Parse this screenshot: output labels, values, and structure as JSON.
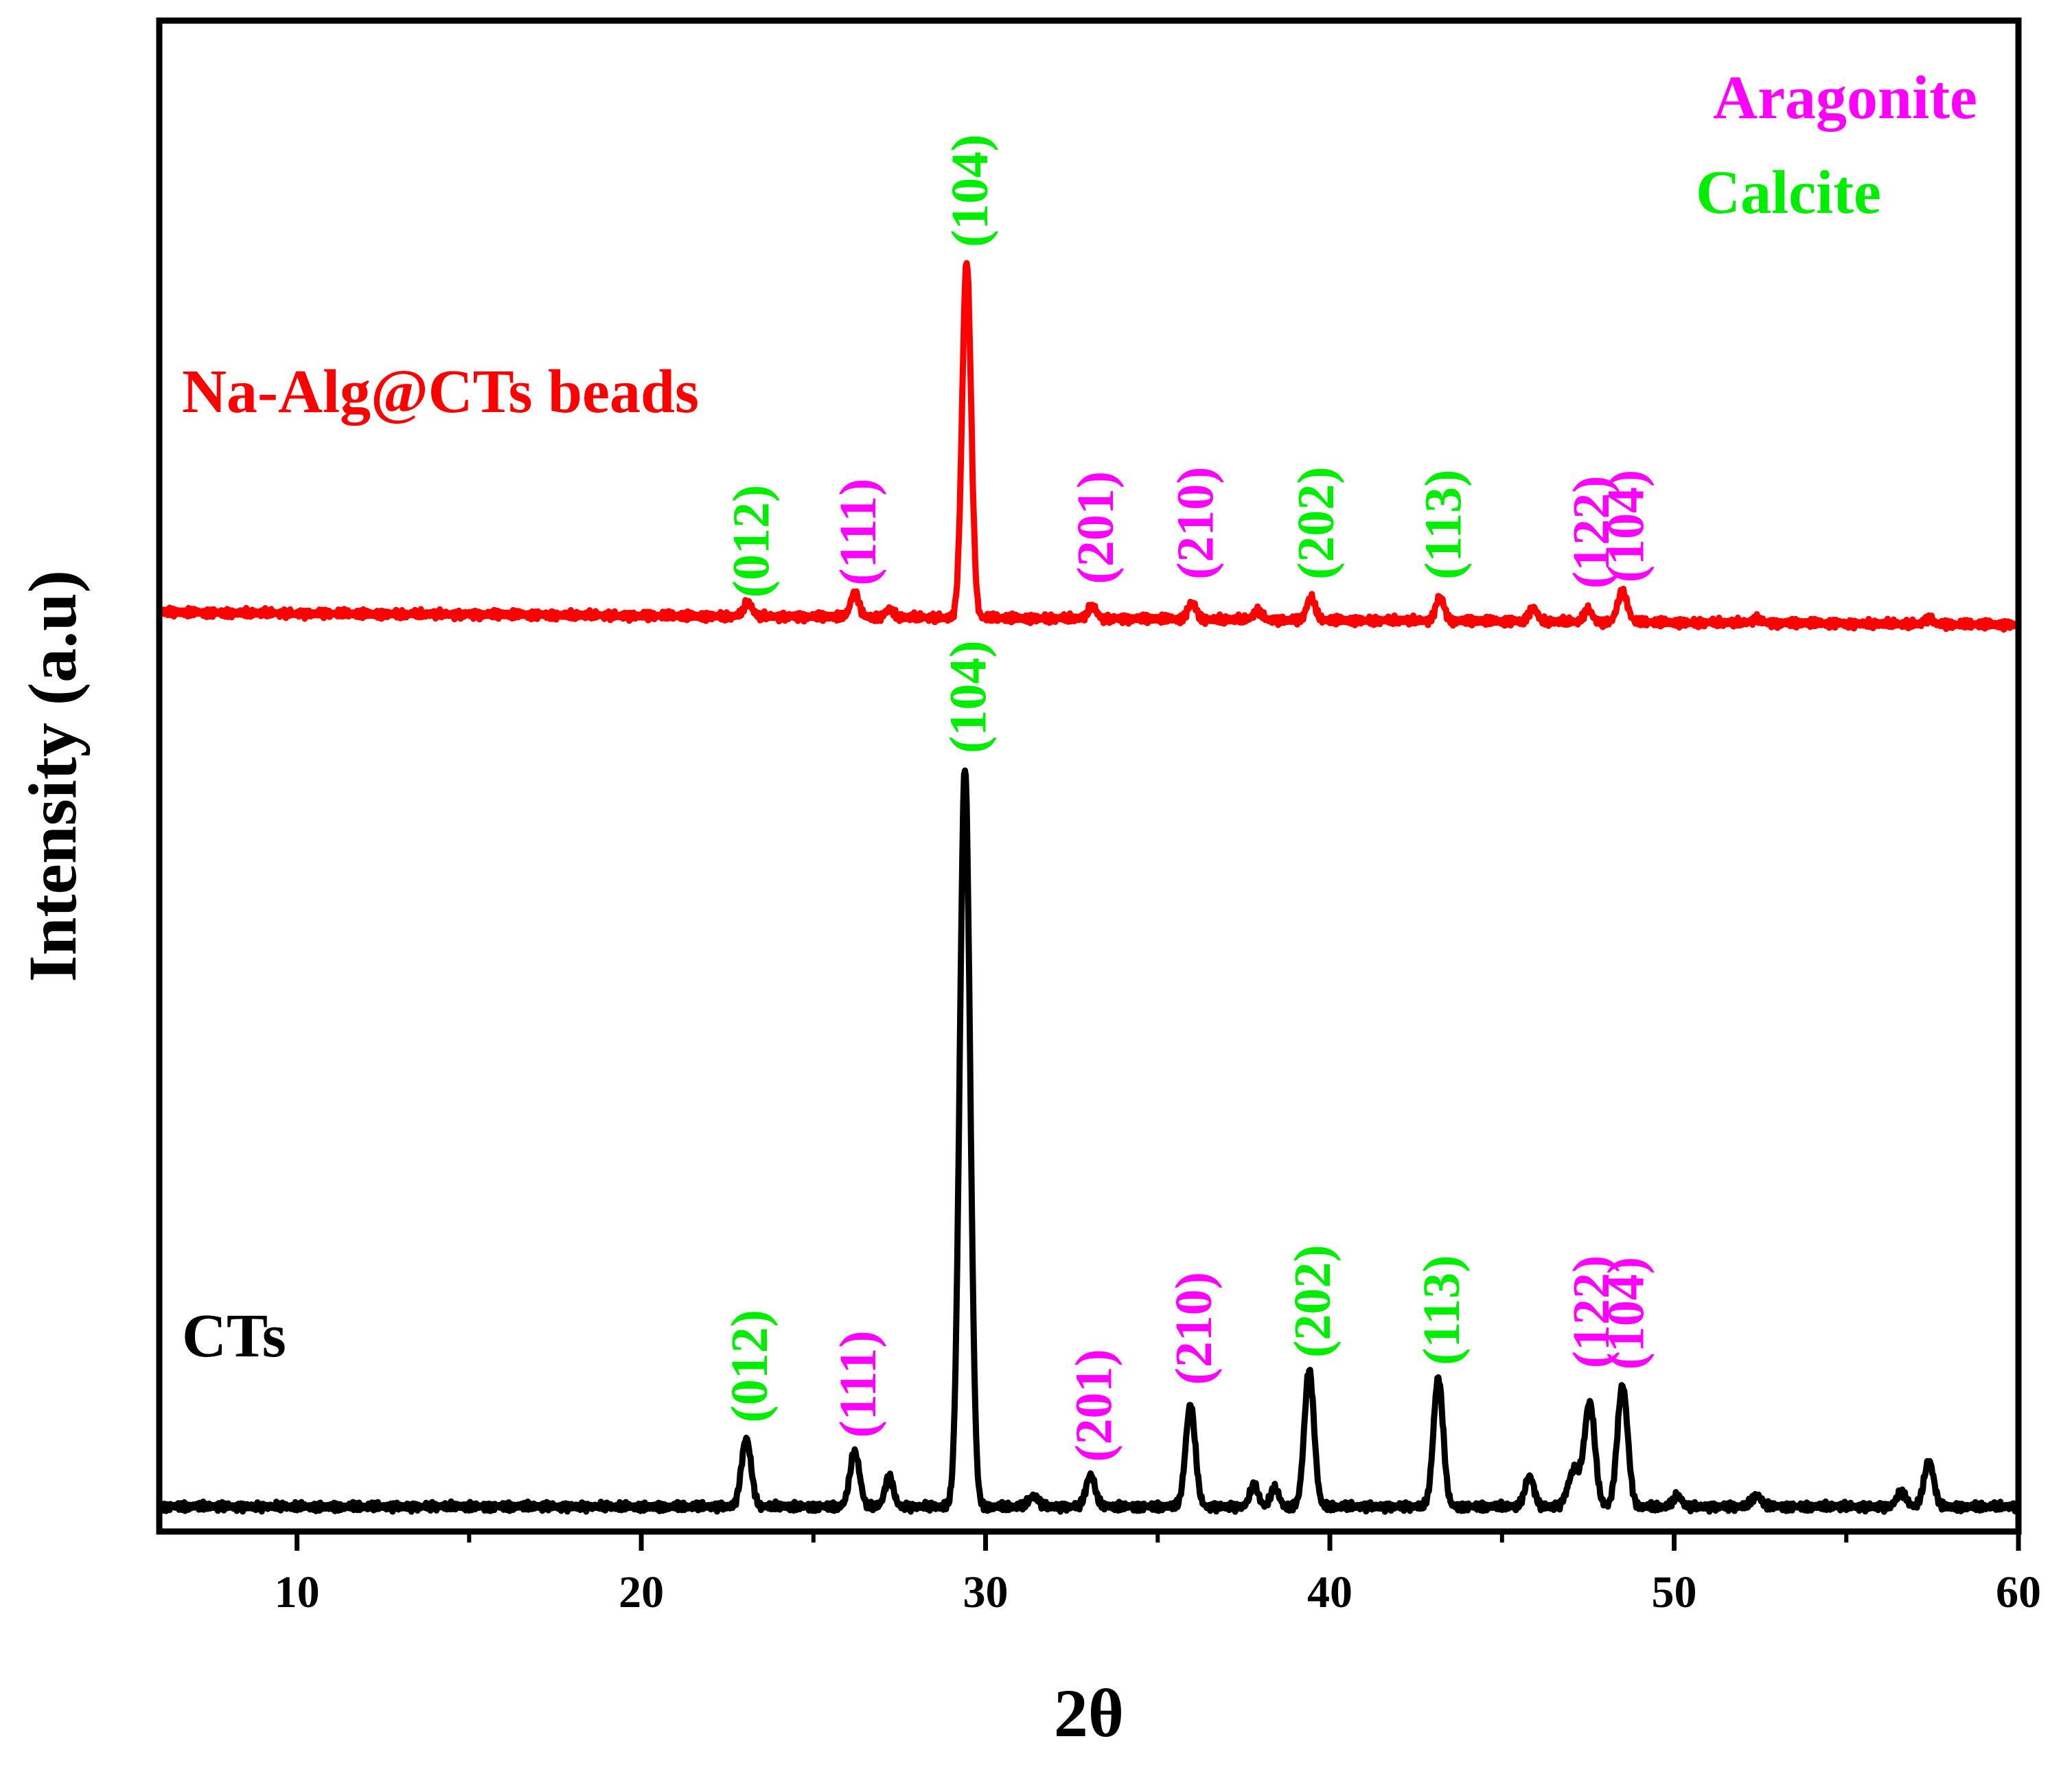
{
  "chart_data": {
    "type": "line",
    "title": "",
    "xlabel": "2θ",
    "ylabel": "Intensity (a.u)",
    "xlim": [
      6,
      60
    ],
    "ylim": [
      0,
      1
    ],
    "x_ticks": [
      {
        "value": 10,
        "label": "10"
      },
      {
        "value": 20,
        "label": "20"
      },
      {
        "value": 30,
        "label": "30"
      },
      {
        "value": 40,
        "label": "40"
      },
      {
        "value": 50,
        "label": "50"
      },
      {
        "value": 60,
        "label": "60"
      }
    ],
    "x_minor_ticks": [
      15,
      25,
      35,
      45,
      55
    ],
    "legend": [
      {
        "label": "Aragonite",
        "color": "#ff00ff"
      },
      {
        "label": "Calcite",
        "color": "#00ee00"
      }
    ],
    "series": [
      {
        "name": "Na-Alg@CTs beads",
        "label": "Na-Alg@CTs beads",
        "color": "#ff0000",
        "baseline": 0.6083,
        "slope": -0.00015,
        "peaks": [
          {
            "x": 23.1,
            "h": 0.009,
            "w": 0.12
          },
          {
            "x": 26.2,
            "h": 0.016,
            "w": 0.12
          },
          {
            "x": 27.2,
            "h": 0.005,
            "w": 0.12
          },
          {
            "x": 29.45,
            "h": 0.236,
            "w": 0.13
          },
          {
            "x": 33.1,
            "h": 0.008,
            "w": 0.12
          },
          {
            "x": 36.0,
            "h": 0.011,
            "w": 0.12
          },
          {
            "x": 37.9,
            "h": 0.006,
            "w": 0.12
          },
          {
            "x": 39.45,
            "h": 0.015,
            "w": 0.12
          },
          {
            "x": 43.2,
            "h": 0.016,
            "w": 0.12
          },
          {
            "x": 45.9,
            "h": 0.009,
            "w": 0.12
          },
          {
            "x": 47.5,
            "h": 0.008,
            "w": 0.12
          },
          {
            "x": 48.5,
            "h": 0.02,
            "w": 0.14
          },
          {
            "x": 52.4,
            "h": 0.003,
            "w": 0.12
          },
          {
            "x": 57.4,
            "h": 0.004,
            "w": 0.12
          }
        ],
        "annotations": [
          {
            "x": 23.1,
            "text": "(012)",
            "phase": "Calcite",
            "y": 0.618
          },
          {
            "x": 26.2,
            "text": "(111)",
            "phase": "Aragonite",
            "y": 0.626
          },
          {
            "x": 29.45,
            "text": "(104)",
            "phase": "Calcite",
            "y": 0.85
          },
          {
            "x": 33.1,
            "text": "(201)",
            "phase": "Aragonite",
            "y": 0.627
          },
          {
            "x": 36.0,
            "text": "(210)",
            "phase": "Aragonite",
            "y": 0.63
          },
          {
            "x": 39.5,
            "text": "(202)",
            "phase": "Calcite",
            "y": 0.63
          },
          {
            "x": 43.2,
            "text": "(113)",
            "phase": "Calcite",
            "y": 0.63
          },
          {
            "x": 47.5,
            "text": "(122)",
            "phase": "Aragonite",
            "y": 0.624
          },
          {
            "x": 48.5,
            "text": "(104)",
            "phase": "Aragonite",
            "y": 0.628
          }
        ]
      },
      {
        "name": "CTs",
        "label": "CTs",
        "color": "#000000",
        "baseline": 0.0165,
        "slope": 0.0,
        "peaks": [
          {
            "x": 23.05,
            "h": 0.045,
            "w": 0.14
          },
          {
            "x": 26.2,
            "h": 0.036,
            "w": 0.14
          },
          {
            "x": 27.2,
            "h": 0.02,
            "w": 0.12
          },
          {
            "x": 29.4,
            "h": 0.49,
            "w": 0.15
          },
          {
            "x": 31.4,
            "h": 0.007,
            "w": 0.14
          },
          {
            "x": 33.05,
            "h": 0.021,
            "w": 0.13
          },
          {
            "x": 35.95,
            "h": 0.067,
            "w": 0.14
          },
          {
            "x": 37.8,
            "h": 0.014,
            "w": 0.12
          },
          {
            "x": 38.4,
            "h": 0.012,
            "w": 0.12
          },
          {
            "x": 39.4,
            "h": 0.09,
            "w": 0.14
          },
          {
            "x": 43.15,
            "h": 0.085,
            "w": 0.14
          },
          {
            "x": 45.8,
            "h": 0.02,
            "w": 0.13
          },
          {
            "x": 47.1,
            "h": 0.024,
            "w": 0.18
          },
          {
            "x": 47.55,
            "h": 0.068,
            "w": 0.15
          },
          {
            "x": 48.5,
            "h": 0.08,
            "w": 0.15
          },
          {
            "x": 50.1,
            "h": 0.007,
            "w": 0.12
          },
          {
            "x": 52.4,
            "h": 0.007,
            "w": 0.14
          },
          {
            "x": 56.6,
            "h": 0.009,
            "w": 0.14
          },
          {
            "x": 57.4,
            "h": 0.03,
            "w": 0.14
          }
        ],
        "annotations": [
          {
            "x": 23.05,
            "text": "(012)",
            "phase": "Calcite",
            "y": 0.072
          },
          {
            "x": 26.2,
            "text": "(111)",
            "phase": "Aragonite",
            "y": 0.062
          },
          {
            "x": 29.4,
            "text": "(104)",
            "phase": "Calcite",
            "y": 0.515
          },
          {
            "x": 33.05,
            "text": "(201)",
            "phase": "Aragonite",
            "y": 0.046
          },
          {
            "x": 35.95,
            "text": "(210)",
            "phase": "Aragonite",
            "y": 0.097
          },
          {
            "x": 39.4,
            "text": "(202)",
            "phase": "Calcite",
            "y": 0.115
          },
          {
            "x": 43.15,
            "text": "(113)",
            "phase": "Calcite",
            "y": 0.11
          },
          {
            "x": 47.5,
            "text": "(122)",
            "phase": "Aragonite",
            "y": 0.108
          },
          {
            "x": 48.5,
            "text": "(104)",
            "phase": "Aragonite",
            "y": 0.107
          }
        ]
      }
    ]
  }
}
